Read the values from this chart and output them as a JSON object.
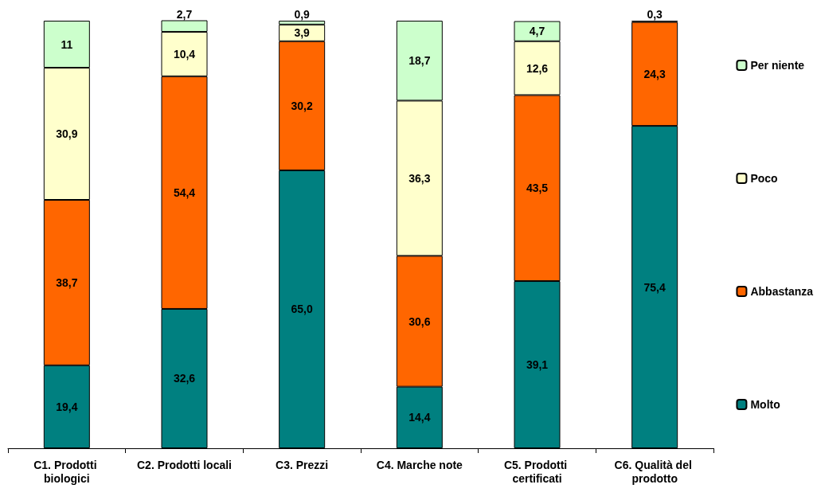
{
  "chart_data": {
    "type": "bar",
    "stacked": true,
    "categories": [
      "C1. Prodotti biologici",
      "C2. Prodotti locali",
      "C3. Prezzi",
      "C4. Marche note",
      "C5. Prodotti certificati",
      "C6. Qualità del prodotto"
    ],
    "ylim": [
      0,
      100
    ],
    "tick_labels": "x",
    "legend": "right",
    "series": [
      {
        "name": "Molto",
        "color": "#008080",
        "values": [
          19.4,
          32.6,
          65.0,
          14.4,
          39.1,
          75.4
        ],
        "value_labels": [
          "19,4",
          "32,6",
          "65,0",
          "14,4",
          "39,1",
          "75,4"
        ]
      },
      {
        "name": "Abbastanza",
        "color": "#ff6600",
        "values": [
          38.7,
          54.4,
          30.2,
          30.6,
          43.5,
          24.3
        ],
        "value_labels": [
          "38,7",
          "54,4",
          "30,2",
          "30,6",
          "43,5",
          "24,3"
        ]
      },
      {
        "name": "Poco",
        "color": "#ffffcc",
        "values": [
          30.9,
          10.4,
          3.9,
          36.3,
          12.6,
          0.3
        ],
        "value_labels": [
          "30,9",
          "10,4",
          "3,9",
          "36,3",
          "12,6",
          "0,3"
        ]
      },
      {
        "name": "Per niente",
        "color": "#ccffcc",
        "values": [
          11,
          2.7,
          0.9,
          18.7,
          4.7,
          null
        ],
        "value_labels": [
          "11",
          "2,7",
          "0,9",
          "18,7",
          "4,7",
          null
        ]
      }
    ]
  }
}
